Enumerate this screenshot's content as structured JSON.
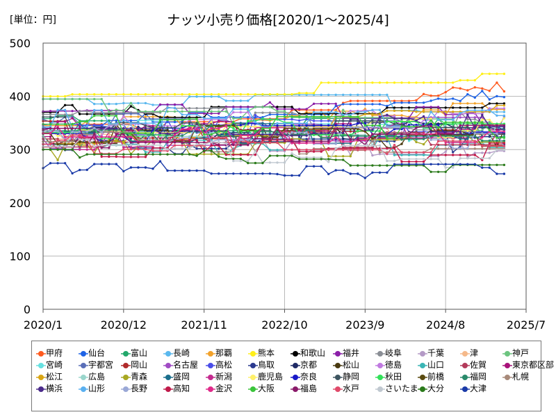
{
  "chart_data": {
    "type": "line",
    "title": "ナッツ小売り価格[2020/1～2025/4]",
    "unit_label": "[単位：円]",
    "xlabel": "",
    "ylabel": "",
    "ylim": [
      0,
      500
    ],
    "y_ticks": [
      0,
      100,
      200,
      300,
      400,
      500
    ],
    "x_ticks": [
      "2020/1",
      "2020/12",
      "2021/11",
      "2022/10",
      "2023/9",
      "2024/8",
      "2025/7"
    ],
    "x_range_months": [
      "2020/1",
      "2025/7"
    ],
    "data_range": [
      "2020/1",
      "2025/4"
    ],
    "grid": true,
    "legend_position": "bottom",
    "series": [
      {
        "name": "甲府",
        "color": "#ff5a1f",
        "start": 330,
        "end": 415,
        "kind": "rise"
      },
      {
        "name": "仙台",
        "color": "#1e63e6",
        "start": 345,
        "end": 400,
        "kind": "rise"
      },
      {
        "name": "富山",
        "color": "#22a86b",
        "start": 355,
        "end": 330,
        "kind": "drift"
      },
      {
        "name": "長崎",
        "color": "#5ab8ee",
        "start": 395,
        "end": 380,
        "kind": "high"
      },
      {
        "name": "那覇",
        "color": "#f2a22b",
        "start": 345,
        "end": 380,
        "kind": "rise"
      },
      {
        "name": "熊本",
        "color": "#ffef1a",
        "start": 400,
        "end": 430,
        "kind": "high"
      },
      {
        "name": "和歌山",
        "color": "#000000",
        "start": 370,
        "end": 375,
        "kind": "step"
      },
      {
        "name": "福井",
        "color": "#8b1fa8",
        "start": 385,
        "end": 355,
        "kind": "drift"
      },
      {
        "name": "岐阜",
        "color": "#8a8e95",
        "start": 365,
        "end": 355,
        "kind": "drift"
      },
      {
        "name": "千葉",
        "color": "#b49ac6",
        "start": 330,
        "end": 300,
        "kind": "drift"
      },
      {
        "name": "津",
        "color": "#f5b98a",
        "start": 320,
        "end": 335,
        "kind": "drift"
      },
      {
        "name": "神戸",
        "color": "#6cc47f",
        "start": 375,
        "end": 345,
        "kind": "drift"
      },
      {
        "name": "宮崎",
        "color": "#66e0e0",
        "start": 340,
        "end": 330,
        "kind": "drift"
      },
      {
        "name": "宇都宮",
        "color": "#5a6fb8",
        "start": 350,
        "end": 340,
        "kind": "drift"
      },
      {
        "name": "岡山",
        "color": "#b02a2a",
        "start": 335,
        "end": 320,
        "kind": "drift"
      },
      {
        "name": "名古屋",
        "color": "#a04bc4",
        "start": 320,
        "end": 345,
        "kind": "drift"
      },
      {
        "name": "高松",
        "color": "#4a4de8",
        "start": 340,
        "end": 350,
        "kind": "drift"
      },
      {
        "name": "鳥取",
        "color": "#2b3a8f",
        "start": 310,
        "end": 315,
        "kind": "drift"
      },
      {
        "name": "京都",
        "color": "#1f2a66",
        "start": 330,
        "end": 340,
        "kind": "drift"
      },
      {
        "name": "松山",
        "color": "#4a3a10",
        "start": 325,
        "end": 320,
        "kind": "drift"
      },
      {
        "name": "徳島",
        "color": "#c07ae0",
        "start": 345,
        "end": 360,
        "kind": "drift"
      },
      {
        "name": "山口",
        "color": "#3bb5b5",
        "start": 310,
        "end": 305,
        "kind": "drift"
      },
      {
        "name": "佐賀",
        "color": "#b33a5a",
        "start": 320,
        "end": 325,
        "kind": "drift"
      },
      {
        "name": "東京都区部",
        "color": "#a8127a",
        "start": 340,
        "end": 335,
        "kind": "drift"
      },
      {
        "name": "松江",
        "color": "#d9a514",
        "start": 305,
        "end": 380,
        "kind": "rise"
      },
      {
        "name": "広島",
        "color": "#9ad6cc",
        "start": 325,
        "end": 330,
        "kind": "drift"
      },
      {
        "name": "青森",
        "color": "#a8a822",
        "start": 300,
        "end": 310,
        "kind": "drift"
      },
      {
        "name": "盛岡",
        "color": "#1a6e8c",
        "start": 335,
        "end": 325,
        "kind": "drift"
      },
      {
        "name": "新潟",
        "color": "#c42b8f",
        "start": 315,
        "end": 340,
        "kind": "drift"
      },
      {
        "name": "鹿児島",
        "color": "#fff06a",
        "start": 335,
        "end": 340,
        "kind": "drift"
      },
      {
        "name": "奈良",
        "color": "#1818c8",
        "start": 330,
        "end": 335,
        "kind": "drift"
      },
      {
        "name": "静岡",
        "color": "#3d5560",
        "start": 345,
        "end": 330,
        "kind": "drift"
      },
      {
        "name": "秋田",
        "color": "#33e05a",
        "start": 325,
        "end": 355,
        "kind": "drift"
      },
      {
        "name": "前橋",
        "color": "#5a4a10",
        "start": 330,
        "end": 320,
        "kind": "drift"
      },
      {
        "name": "福岡",
        "color": "#2a8a6a",
        "start": 335,
        "end": 320,
        "kind": "drift"
      },
      {
        "name": "札幌",
        "color": "#a88a7a",
        "start": 315,
        "end": 300,
        "kind": "drift"
      },
      {
        "name": "横浜",
        "color": "#4a2a8a",
        "start": 340,
        "end": 350,
        "kind": "drift"
      },
      {
        "name": "山形",
        "color": "#5ab0f0",
        "start": 360,
        "end": 355,
        "kind": "drift"
      },
      {
        "name": "長野",
        "color": "#9aa8d6",
        "start": 330,
        "end": 320,
        "kind": "drift"
      },
      {
        "name": "高知",
        "color": "#c01a4a",
        "start": 305,
        "end": 295,
        "kind": "drift"
      },
      {
        "name": "金沢",
        "color": "#e02a8a",
        "start": 330,
        "end": 325,
        "kind": "drift"
      },
      {
        "name": "大阪",
        "color": "#3ac43a",
        "start": 345,
        "end": 340,
        "kind": "drift"
      },
      {
        "name": "福島",
        "color": "#8a1a6a",
        "start": 320,
        "end": 330,
        "kind": "drift"
      },
      {
        "name": "水戸",
        "color": "#e04a6a",
        "start": 310,
        "end": 300,
        "kind": "drift"
      },
      {
        "name": "さいたま",
        "color": "#c0c8d0",
        "start": 305,
        "end": 280,
        "kind": "drift"
      },
      {
        "name": "大分",
        "color": "#2a7a1a",
        "start": 300,
        "end": 255,
        "kind": "low"
      },
      {
        "name": "大津",
        "color": "#1a3aa8",
        "start": 265,
        "end": 260,
        "kind": "low"
      }
    ]
  }
}
